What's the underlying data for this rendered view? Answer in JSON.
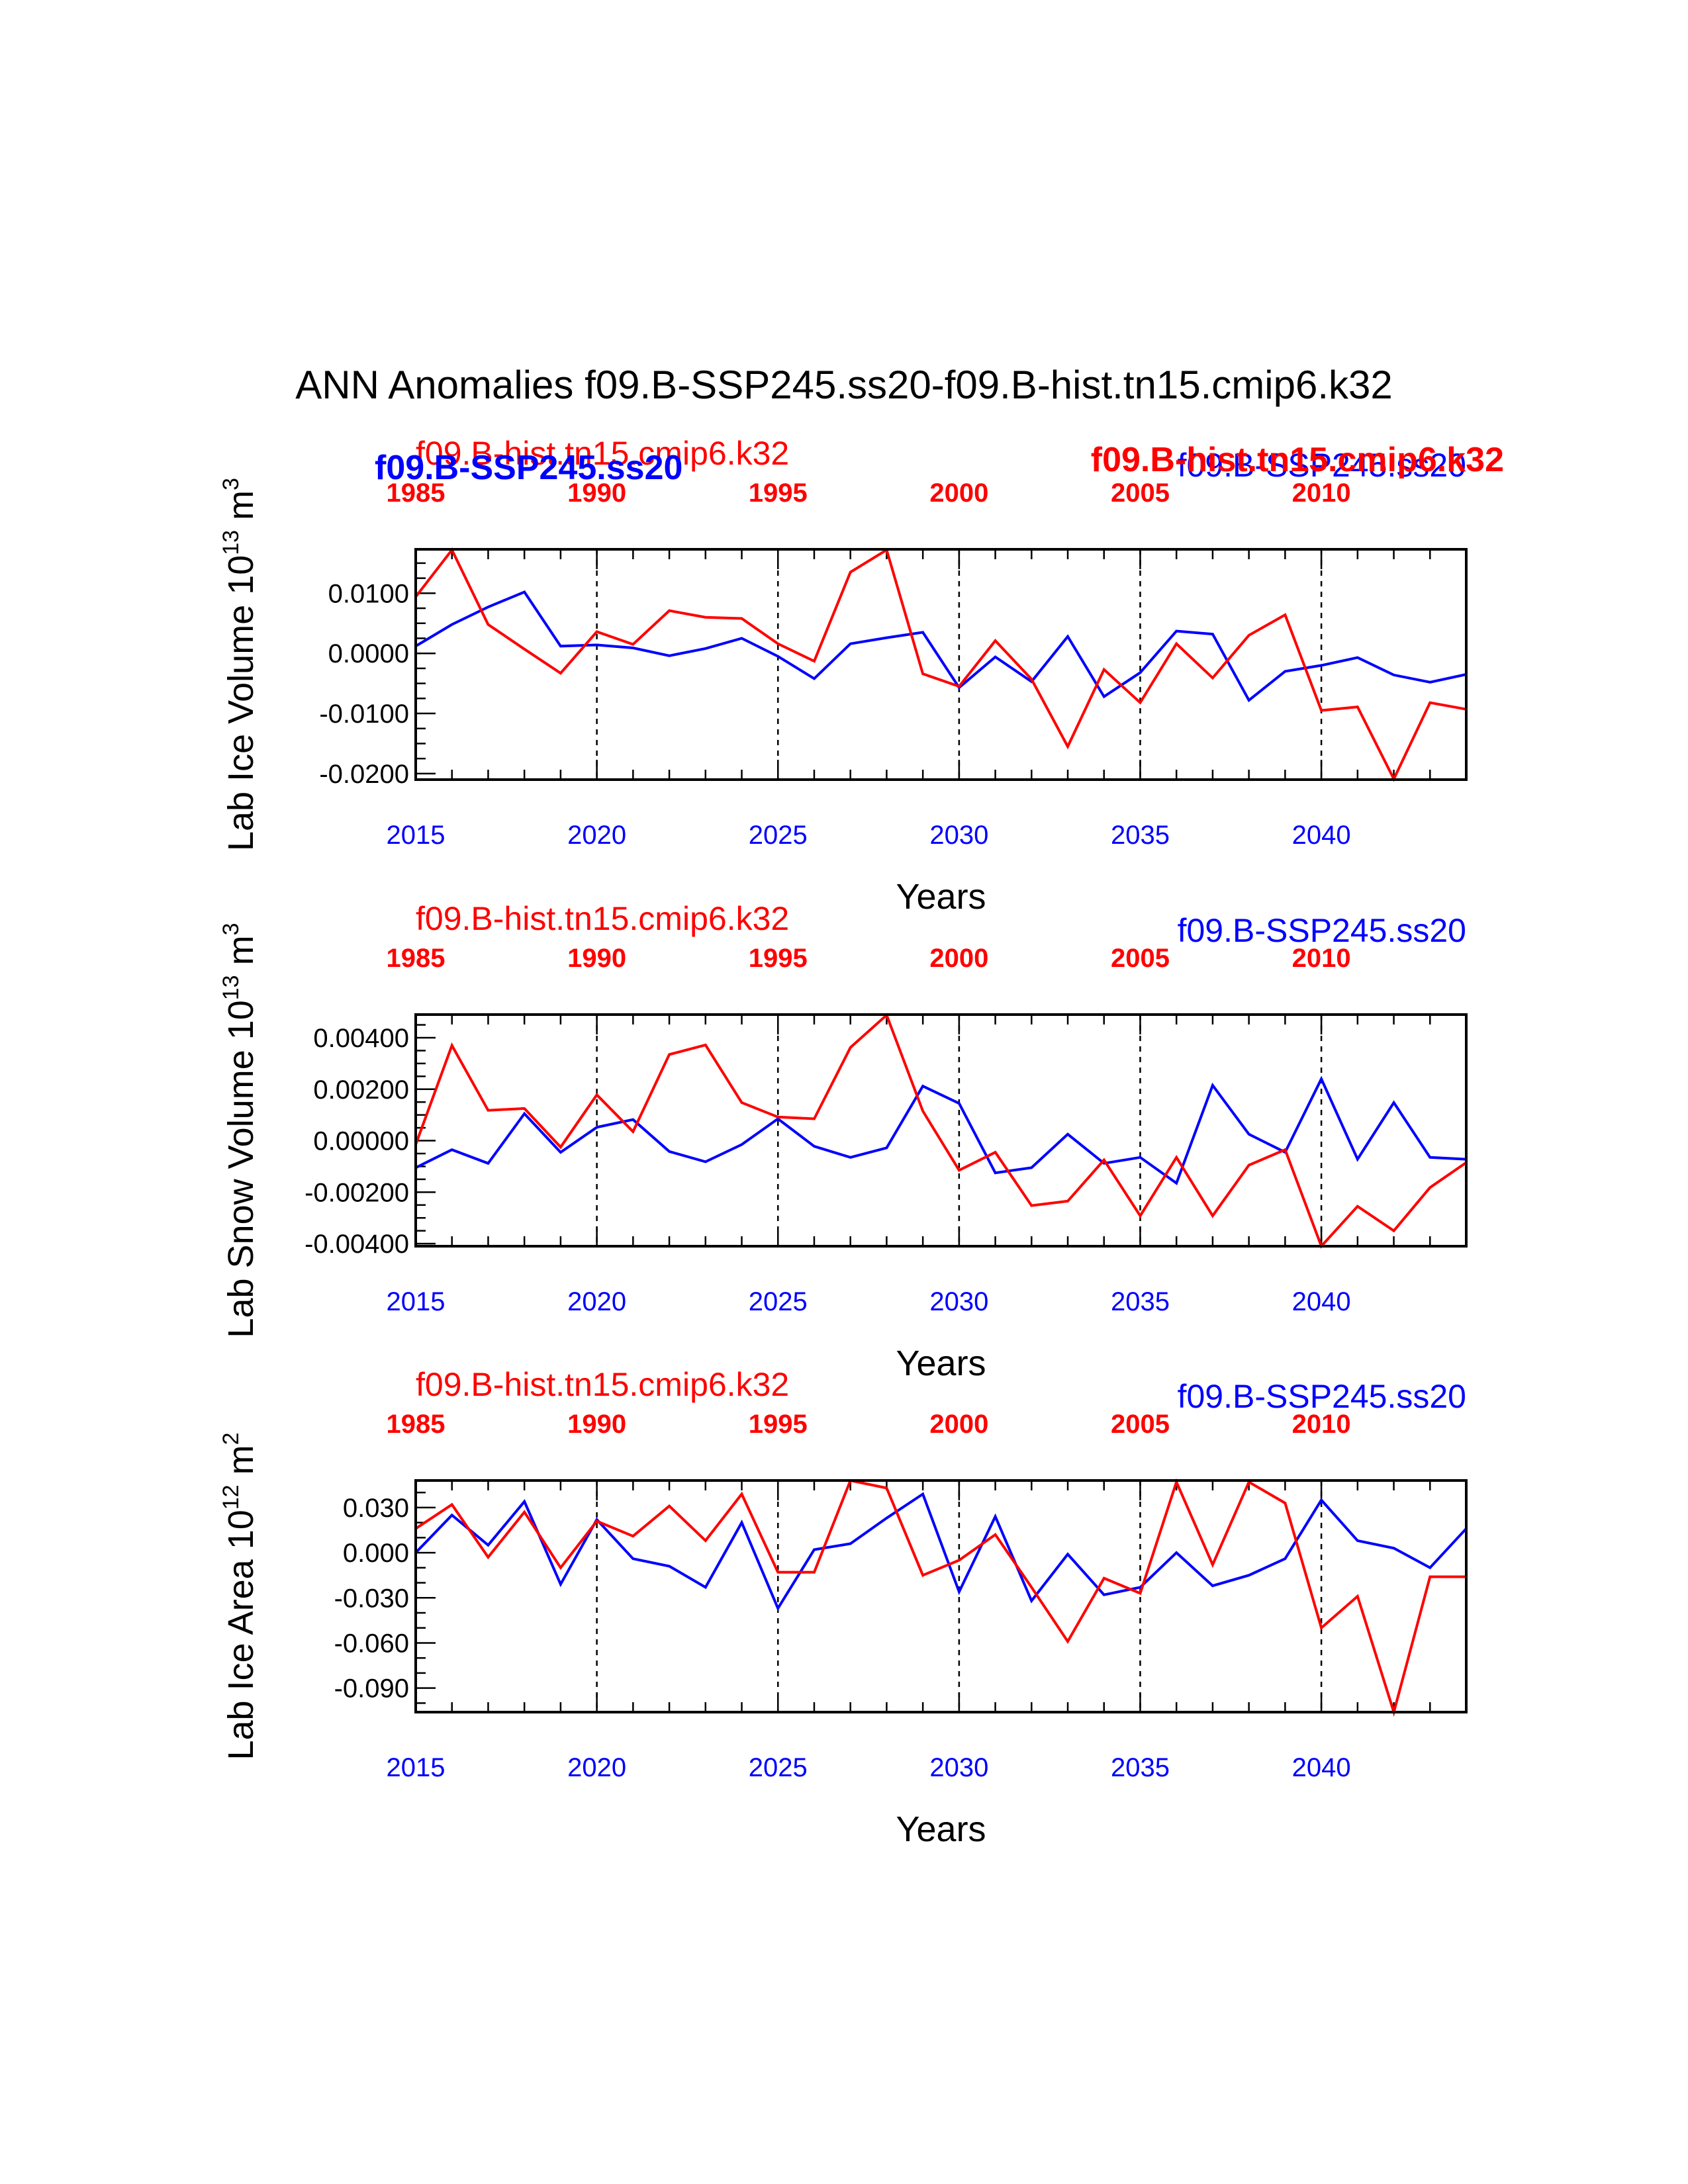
{
  "title": "ANN Anomalies f09.B-SSP245.ss20-f09.B-hist.tn15.cmip6.k32",
  "colors": {
    "ssp": "#0000ff",
    "hist": "#ff0000",
    "axis": "#000000"
  },
  "overlay_labels": {
    "blue_bold": "f09.B-SSP245.ss20",
    "red_bold": "f09.B-hist.tn15.cmip6.k32"
  },
  "chart_data": [
    {
      "type": "line",
      "ylabel": "Lab Ice Volume 10",
      "ylabel_exp": "13",
      "ylabel_unit": " m",
      "ylabel_unit_exp": "3",
      "xlabel": "Years",
      "top_left_label": "f09.B-hist.tn15.cmip6.k32",
      "top_right_label": "f09.B-SSP245.ss20",
      "ylim": [
        -0.021,
        0.0173
      ],
      "yticks": [
        0.01,
        0.0,
        -0.01,
        -0.02
      ],
      "ytick_labels": [
        "0.0100",
        "0.0000",
        "-0.0100",
        "-0.0200"
      ],
      "yminor": 0.0025,
      "x": [
        2015,
        2016,
        2017,
        2018,
        2019,
        2020,
        2021,
        2022,
        2023,
        2024,
        2025,
        2026,
        2027,
        2028,
        2029,
        2030,
        2031,
        2032,
        2033,
        2034,
        2035,
        2036,
        2037,
        2038,
        2039,
        2040,
        2041,
        2042,
        2043,
        2044
      ],
      "xlim": [
        2015,
        2044
      ],
      "xtick_labels_bottom": [
        "2015",
        "2020",
        "2025",
        "2030",
        "2035",
        "2040"
      ],
      "xtick_labels_top": [
        "1985",
        "1990",
        "1995",
        "2000",
        "2005",
        "2010"
      ],
      "series": [
        {
          "name": "f09.B-SSP245.ss20",
          "color": "#0000ff",
          "values": [
            0.0012,
            0.0048,
            0.0077,
            0.0102,
            0.0012,
            0.0014,
            0.0009,
            -0.0004,
            0.0008,
            0.0025,
            -0.0005,
            -0.0042,
            0.0016,
            0.0026,
            0.0035,
            -0.0057,
            -0.0006,
            -0.0047,
            0.0028,
            -0.0072,
            -0.0032,
            0.0037,
            0.0032,
            -0.0078,
            -0.003,
            -0.002,
            -0.0007,
            -0.0036,
            -0.0048,
            -0.0035
          ]
        },
        {
          "name": "f09.B-hist.tn15.cmip6.k32",
          "color": "#ff0000",
          "values": [
            0.0094,
            0.0172,
            0.0048,
            0.0007,
            -0.0033,
            0.0036,
            0.0015,
            0.0071,
            0.006,
            0.0058,
            0.0016,
            -0.0013,
            0.0135,
            0.0172,
            -0.0034,
            -0.0055,
            0.0021,
            -0.0043,
            -0.0155,
            -0.0027,
            -0.0082,
            0.0016,
            -0.0041,
            0.003,
            0.0064,
            -0.0095,
            -0.0089,
            -0.0209,
            -0.0082,
            -0.0093
          ]
        }
      ]
    },
    {
      "type": "line",
      "ylabel": "Lab Snow Volume 10",
      "ylabel_exp": "13",
      "ylabel_unit": " m",
      "ylabel_unit_exp": "3",
      "xlabel": "Years",
      "top_left_label": "f09.B-hist.tn15.cmip6.k32",
      "top_right_label": "f09.B-SSP245.ss20",
      "ylim": [
        -0.0041,
        0.0049
      ],
      "yticks": [
        0.004,
        0.002,
        0.0,
        -0.002,
        -0.004
      ],
      "ytick_labels": [
        "0.00400",
        "0.00200",
        "0.00000",
        "-0.00200",
        "-0.00400"
      ],
      "yminor": 0.0005,
      "x": [
        2015,
        2016,
        2017,
        2018,
        2019,
        2020,
        2021,
        2022,
        2023,
        2024,
        2025,
        2026,
        2027,
        2028,
        2029,
        2030,
        2031,
        2032,
        2033,
        2034,
        2035,
        2036,
        2037,
        2038,
        2039,
        2040,
        2041,
        2042,
        2043,
        2044
      ],
      "xlim": [
        2015,
        2044
      ],
      "xtick_labels_bottom": [
        "2015",
        "2020",
        "2025",
        "2030",
        "2035",
        "2040"
      ],
      "xtick_labels_top": [
        "1985",
        "1990",
        "1995",
        "2000",
        "2005",
        "2010"
      ],
      "series": [
        {
          "name": "f09.B-SSP245.ss20",
          "color": "#0000ff",
          "values": [
            -0.00105,
            -0.00035,
            -0.00088,
            0.00105,
            -0.00045,
            0.00052,
            0.00082,
            -0.00042,
            -0.00082,
            -0.00015,
            0.00085,
            -0.00022,
            -0.00065,
            -0.00028,
            0.00212,
            0.00145,
            -0.00125,
            -0.00105,
            0.00025,
            -0.00088,
            -0.00065,
            -0.00165,
            0.00215,
            0.00025,
            -0.00045,
            0.0024,
            -0.00072,
            0.00148,
            -0.00065,
            -0.00072
          ]
        },
        {
          "name": "f09.B-hist.tn15.cmip6.k32",
          "color": "#ff0000",
          "values": [
            -0.00015,
            0.0037,
            0.00118,
            0.00125,
            -0.00025,
            0.00178,
            0.00035,
            0.00335,
            0.00372,
            0.00148,
            0.00092,
            0.00085,
            0.00362,
            0.00488,
            0.00115,
            -0.00115,
            -0.00045,
            -0.00252,
            -0.00235,
            -0.00075,
            -0.00292,
            -0.00065,
            -0.00292,
            -0.00095,
            -0.00035,
            -0.0041,
            -0.00255,
            -0.0035,
            -0.00182,
            -0.00085
          ]
        }
      ]
    },
    {
      "type": "line",
      "ylabel": "Lab Ice Area 10",
      "ylabel_exp": "12",
      "ylabel_unit": " m",
      "ylabel_unit_exp": "2",
      "xlabel": "Years",
      "top_left_label": "f09.B-hist.tn15.cmip6.k32",
      "top_right_label": "f09.B-SSP245.ss20",
      "ylim": [
        -0.106,
        0.048
      ],
      "yticks": [
        0.03,
        0.0,
        -0.03,
        -0.06,
        -0.09
      ],
      "ytick_labels": [
        "0.030",
        "0.000",
        "-0.030",
        "-0.060",
        "-0.090"
      ],
      "yminor": 0.01,
      "x": [
        2015,
        2016,
        2017,
        2018,
        2019,
        2020,
        2021,
        2022,
        2023,
        2024,
        2025,
        2026,
        2027,
        2028,
        2029,
        2030,
        2031,
        2032,
        2033,
        2034,
        2035,
        2036,
        2037,
        2038,
        2039,
        2040,
        2041,
        2042,
        2043,
        2044
      ],
      "xlim": [
        2015,
        2044
      ],
      "xtick_labels_bottom": [
        "2015",
        "2020",
        "2025",
        "2030",
        "2035",
        "2040"
      ],
      "xtick_labels_top": [
        "1985",
        "1990",
        "1995",
        "2000",
        "2005",
        "2010"
      ],
      "series": [
        {
          "name": "f09.B-SSP245.ss20",
          "color": "#0000ff",
          "values": [
            0.0,
            0.025,
            0.005,
            0.034,
            -0.021,
            0.022,
            -0.004,
            -0.009,
            -0.023,
            0.02,
            -0.037,
            0.002,
            0.006,
            0.023,
            0.039,
            -0.026,
            0.024,
            -0.032,
            -0.001,
            -0.028,
            -0.023,
            0.0,
            -0.022,
            -0.015,
            -0.004,
            0.035,
            0.008,
            0.003,
            -0.01,
            0.016
          ]
        },
        {
          "name": "f09.B-hist.tn15.cmip6.k32",
          "color": "#ff0000",
          "values": [
            0.016,
            0.032,
            -0.003,
            0.027,
            -0.01,
            0.021,
            0.011,
            0.031,
            0.008,
            0.039,
            -0.013,
            -0.013,
            0.048,
            0.043,
            -0.015,
            -0.005,
            0.012,
            -0.023,
            -0.059,
            -0.017,
            -0.027,
            0.047,
            -0.008,
            0.047,
            0.033,
            -0.05,
            -0.029,
            -0.106,
            -0.016,
            -0.016
          ]
        }
      ]
    }
  ]
}
